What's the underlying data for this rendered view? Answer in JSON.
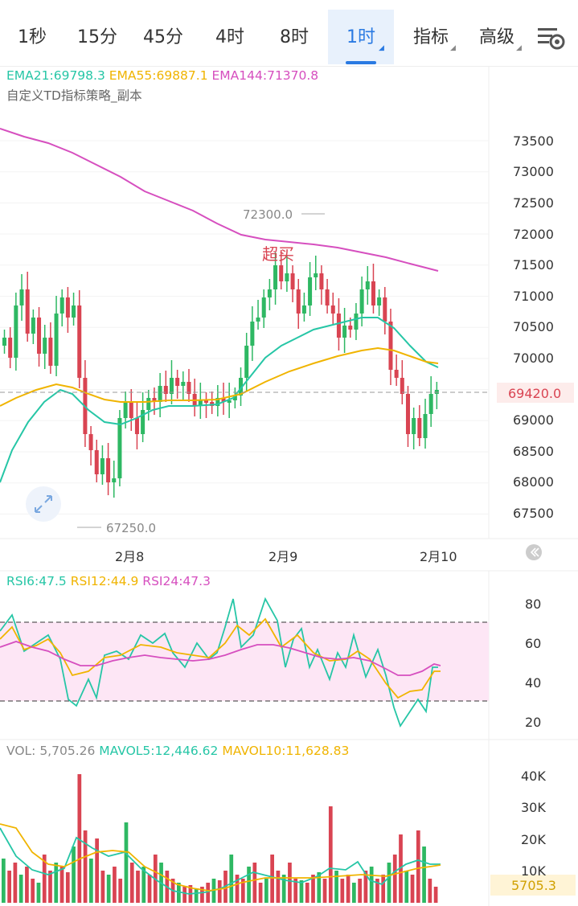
{
  "tabs": [
    {
      "label": "1秒",
      "dropdown": false,
      "active": false
    },
    {
      "label": "15分",
      "dropdown": false,
      "active": false
    },
    {
      "label": "45分",
      "dropdown": false,
      "active": false
    },
    {
      "label": "4时",
      "dropdown": false,
      "active": false
    },
    {
      "label": "8时",
      "dropdown": false,
      "active": false
    },
    {
      "label": "1时",
      "dropdown": true,
      "active": true
    },
    {
      "label": "指标",
      "dropdown": true,
      "active": false
    },
    {
      "label": "高级",
      "dropdown": true,
      "active": false
    }
  ],
  "settings_icon": "chart-settings-icon",
  "price_chart": {
    "ema21_label": "EMA21:69798.3",
    "ema55_label": "EMA55:69887.1",
    "ema144_label": "EMA144:71370.8",
    "strategy_label": "自定义TD指标策略_副本",
    "y_ticks": [
      "73500",
      "73000",
      "72500",
      "72000",
      "71500",
      "71000",
      "70500",
      "70000",
      "69500",
      "69000",
      "68500",
      "68000",
      "67500"
    ],
    "current_price": "69420.0",
    "high_marker": "72300.0",
    "low_marker": "67250.0",
    "overbought_label": "超买",
    "x_ticks": [
      "2月8",
      "2月9",
      "2月10"
    ],
    "expand_icon": "expand-arrows-icon",
    "back_icon": "scroll-to-latest-icon"
  },
  "rsi": {
    "rsi6_label": "RSI6:47.5",
    "rsi12_label": "RSI12:44.9",
    "rsi24_label": "RSI24:47.3",
    "y_ticks": [
      "80",
      "60",
      "40",
      "20"
    ]
  },
  "volume": {
    "vol_label": "VOL: 5,705.26",
    "mavol5_label": "MAVOL5:12,446.62",
    "mavol10_label": "MAVOL10:11,628.83",
    "y_ticks": [
      "40K",
      "30K",
      "20K",
      "10K"
    ],
    "current_volume": "5705.3"
  },
  "colors": {
    "up": "#2eb863",
    "down": "#d94452",
    "ema21": "#26c6a6",
    "ema55": "#f0b400",
    "ema144": "#d64fbf",
    "accent": "#2a7ae2"
  }
}
